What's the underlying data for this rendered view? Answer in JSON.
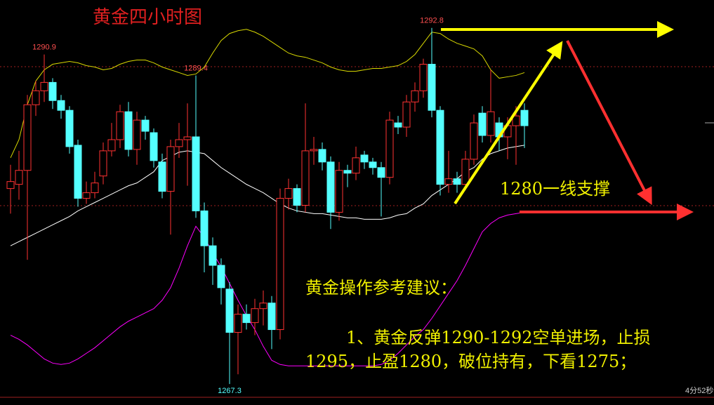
{
  "chart_data": {
    "type": "candlestick",
    "title": "黄金四小时图",
    "ylim": [
      1265.8,
      1294.8
    ],
    "up_color": "#ff3232",
    "down_color": "#54ffff",
    "open": [
      1281.3,
      1281.6,
      1282.6,
      1287.3,
      1288.3,
      1288.9,
      1287.6,
      1286.9,
      1284.4,
      1280.6,
      1281.0,
      1282.2,
      1284.0,
      1284.8,
      1286.8,
      1284.1,
      1286.2,
      1285.3,
      1283.2,
      1281.1,
      1284.3,
      1284.8,
      1285.0,
      1279.7,
      1277.2,
      1275.8,
      1274.1,
      1271.0,
      1272.3,
      1271.7,
      1272.7,
      1273.1,
      1271.2,
      1280.6,
      1281.3,
      1280.1,
      1284.0,
      1284.1,
      1283.2,
      1279.6,
      1282.6,
      1282.4,
      1283.7,
      1283.2,
      1282.8,
      1282.1,
      1286.0,
      1285.7,
      1287.5,
      1288.3,
      1290.2,
      1286.9,
      1281.6,
      1282.0,
      1281.6,
      1283.4,
      1286.7,
      1285.1,
      1286.0,
      1285.0,
      1285.8,
      1286.9
    ],
    "high": [
      1283.0,
      1284.0,
      1288.0,
      1289.0,
      1290.9,
      1289.2,
      1288.0,
      1287.2,
      1284.8,
      1281.8,
      1282.5,
      1284.6,
      1286.0,
      1287.3,
      1287.5,
      1286.8,
      1286.5,
      1285.6,
      1283.8,
      1284.8,
      1286.0,
      1287.4,
      1289.4,
      1280.3,
      1277.8,
      1276.3,
      1274.6,
      1273.0,
      1273.0,
      1273.4,
      1274.0,
      1273.6,
      1281.3,
      1282.0,
      1281.6,
      1287.4,
      1285.0,
      1284.6,
      1283.6,
      1283.2,
      1283.0,
      1284.3,
      1284.0,
      1283.5,
      1283.2,
      1286.8,
      1286.5,
      1288.0,
      1288.9,
      1290.6,
      1292.8,
      1287.2,
      1284.0,
      1282.5,
      1284.0,
      1286.6,
      1287.2,
      1289.8,
      1286.4,
      1286.4,
      1287.2,
      1287.4
    ],
    "low": [
      1279.5,
      1280.5,
      1276.2,
      1286.5,
      1287.5,
      1287.0,
      1286.3,
      1283.8,
      1280.0,
      1280.2,
      1280.6,
      1281.6,
      1283.6,
      1284.2,
      1283.6,
      1283.0,
      1284.8,
      1282.8,
      1280.6,
      1278.0,
      1283.5,
      1281.5,
      1279.2,
      1275.3,
      1274.4,
      1273.0,
      1267.3,
      1268.0,
      1271.2,
      1270.8,
      1271.5,
      1269.8,
      1270.5,
      1279.8,
      1279.6,
      1279.6,
      1283.0,
      1282.6,
      1278.4,
      1279.0,
      1281.4,
      1281.9,
      1282.7,
      1282.3,
      1279.3,
      1281.6,
      1285.2,
      1285.0,
      1286.8,
      1287.8,
      1286.4,
      1280.8,
      1281.0,
      1281.0,
      1281.2,
      1283.0,
      1284.6,
      1284.6,
      1284.0,
      1283.4,
      1283.0,
      1284.2
    ],
    "close": [
      1281.8,
      1282.6,
      1287.3,
      1288.3,
      1288.9,
      1287.6,
      1286.9,
      1284.3,
      1280.6,
      1281.0,
      1281.7,
      1284.0,
      1284.8,
      1286.8,
      1284.1,
      1286.2,
      1285.4,
      1283.3,
      1281.1,
      1284.3,
      1284.8,
      1285.0,
      1279.7,
      1277.2,
      1275.8,
      1274.2,
      1271.0,
      1272.3,
      1271.7,
      1272.7,
      1273.1,
      1271.2,
      1280.6,
      1281.3,
      1280.1,
      1284.0,
      1284.1,
      1283.2,
      1279.6,
      1282.6,
      1282.4,
      1283.5,
      1283.2,
      1282.8,
      1282.1,
      1286.2,
      1285.7,
      1287.5,
      1288.3,
      1290.2,
      1286.9,
      1281.6,
      1282.0,
      1281.6,
      1283.4,
      1286.0,
      1285.1,
      1286.8,
      1285.0,
      1285.8,
      1286.5,
      1285.8
    ],
    "labeled_highs": [
      4,
      22,
      50
    ],
    "labeled_lows": [
      26
    ],
    "overlays": [
      {
        "color": "#d8d800",
        "values": [
          1283.5,
          1284.8,
          1287.3,
          1289.0,
          1289.8,
          1290.2,
          1290.3,
          1290.4,
          1290.3,
          1290.1,
          1290.0,
          1289.8,
          1289.9,
          1290.2,
          1290.4,
          1290.5,
          1290.5,
          1290.3,
          1290.0,
          1289.8,
          1289.6,
          1289.4,
          1289.5,
          1290.0,
          1291.0,
          1291.9,
          1292.4,
          1292.6,
          1292.7,
          1292.5,
          1292.2,
          1291.8,
          1291.4,
          1291.0,
          1290.8,
          1290.7,
          1290.5,
          1290.3,
          1290.0,
          1289.8,
          1289.7,
          1289.7,
          1289.8,
          1289.9,
          1289.9,
          1290.0,
          1290.1,
          1290.4,
          1290.9,
          1291.7,
          1292.5,
          1292.4,
          1292.0,
          1291.7,
          1291.5,
          1291.3,
          1290.8,
          1289.8,
          1289.2,
          1289.3,
          1289.4,
          1289.6
        ]
      },
      {
        "color": "#ffffff",
        "values": [
          1277.2,
          1277.5,
          1277.8,
          1278.1,
          1278.4,
          1278.7,
          1279.0,
          1279.3,
          1279.7,
          1280.0,
          1280.3,
          1280.6,
          1280.9,
          1281.2,
          1281.5,
          1281.7,
          1282.1,
          1282.5,
          1283.3,
          1283.6,
          1283.9,
          1284.0,
          1283.9,
          1283.8,
          1283.3,
          1282.8,
          1282.4,
          1282.0,
          1281.6,
          1281.3,
          1281.0,
          1280.6,
          1280.2,
          1279.9,
          1279.7,
          1279.6,
          1279.5,
          1279.5,
          1279.4,
          1279.3,
          1279.2,
          1279.2,
          1279.1,
          1279.1,
          1279.1,
          1279.2,
          1279.4,
          1279.5,
          1279.9,
          1280.2,
          1280.8,
          1281.2,
          1281.6,
          1282.0,
          1282.5,
          1282.8,
          1283.4,
          1283.8,
          1284.0,
          1284.2,
          1284.3,
          1284.4
        ]
      },
      {
        "color": "#ff00ff",
        "values": [
          1270.8,
          1270.5,
          1270.1,
          1269.6,
          1269.1,
          1268.8,
          1268.7,
          1268.8,
          1269.1,
          1269.5,
          1269.9,
          1270.4,
          1270.9,
          1271.4,
          1271.8,
          1272.1,
          1272.4,
          1272.7,
          1273.3,
          1274.2,
          1275.6,
          1277.2,
          1278.6,
          1277.8,
          1276.7,
          1275.7,
          1274.5,
          1273.3,
          1272.2,
          1271.2,
          1270.0,
          1269.0,
          1268.7,
          1268.6,
          1268.6,
          1268.6,
          1268.6,
          1268.6,
          1268.6,
          1268.6,
          1268.6,
          1268.6,
          1268.6,
          1268.6,
          1268.7,
          1269.0,
          1269.5,
          1270.1,
          1270.7,
          1271.2,
          1272.0,
          1272.9,
          1273.8,
          1274.7,
          1275.8,
          1277.0,
          1278.2,
          1278.8,
          1279.2,
          1279.4,
          1279.5,
          1279.6
        ]
      }
    ],
    "annotations": {
      "support": "1280一线支撑",
      "advice_title": "黄金操作参考建议：",
      "advice_body": "1、黄金反弹1290-1292空单进场，止损1295，止盈1280，破位持有，下看1275；",
      "timer": "4分52秒"
    }
  }
}
